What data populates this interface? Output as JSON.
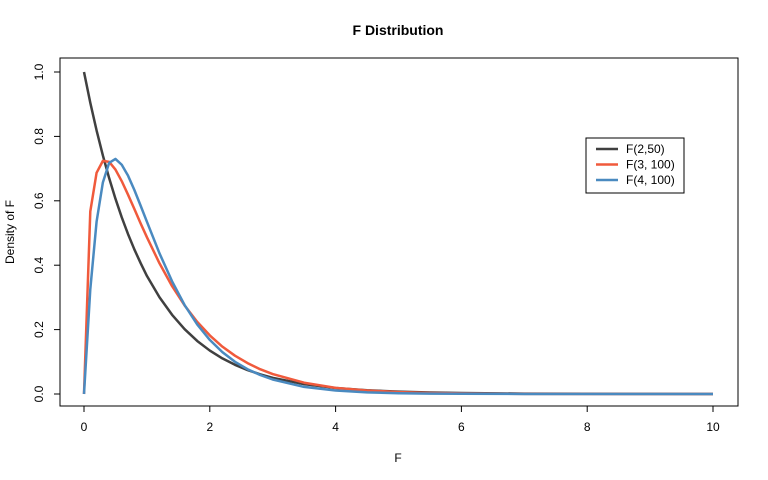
{
  "chart_data": {
    "type": "line",
    "title": "F Distribution",
    "xlabel": "F",
    "ylabel": "Density of F",
    "xlim": [
      0,
      10
    ],
    "ylim": [
      0,
      1.0
    ],
    "x_ticks": [
      0,
      2,
      4,
      6,
      8,
      10
    ],
    "x_tick_labels": [
      "0",
      "2",
      "4",
      "6",
      "8",
      "10"
    ],
    "y_ticks": [
      0.0,
      0.2,
      0.4,
      0.6,
      0.8,
      1.0
    ],
    "y_tick_labels": [
      "0.0",
      "0.2",
      "0.4",
      "0.6",
      "0.8",
      "1.0"
    ],
    "grid": false,
    "legend_position": "right",
    "series": [
      {
        "name": "F(2,50)",
        "color": "#404040",
        "points": [
          [
            0,
            1.0
          ],
          [
            0.1,
            0.9047
          ],
          [
            0.2,
            0.8186
          ],
          [
            0.3,
            0.7408
          ],
          [
            0.4,
            0.6703
          ],
          [
            0.5,
            0.6065
          ],
          [
            0.6,
            0.5488
          ],
          [
            0.7,
            0.4966
          ],
          [
            0.8,
            0.4493
          ],
          [
            0.9,
            0.4066
          ],
          [
            1.0,
            0.3668
          ],
          [
            1.2,
            0.3005
          ],
          [
            1.4,
            0.246
          ],
          [
            1.6,
            0.2013
          ],
          [
            1.8,
            0.1647
          ],
          [
            2.0,
            0.1349
          ],
          [
            2.2,
            0.1106
          ],
          [
            2.4,
            0.0907
          ],
          [
            2.6,
            0.0744
          ],
          [
            2.8,
            0.0611
          ],
          [
            3.0,
            0.0503
          ],
          [
            3.5,
            0.0306
          ],
          [
            4.0,
            0.0188
          ],
          [
            4.5,
            0.0117
          ],
          [
            5.0,
            0.0074
          ],
          [
            5.5,
            0.0047
          ],
          [
            6.0,
            0.003
          ],
          [
            7.0,
            0.0013
          ],
          [
            8.0,
            0.0006
          ],
          [
            9.0,
            0.0003
          ],
          [
            10.0,
            0.0001
          ]
        ]
      },
      {
        "name": "F(3, 100)",
        "color": "#f05a3c",
        "points": [
          [
            0,
            0.0
          ],
          [
            0.1,
            0.567
          ],
          [
            0.2,
            0.687
          ],
          [
            0.3,
            0.724
          ],
          [
            0.4,
            0.721
          ],
          [
            0.5,
            0.697
          ],
          [
            0.6,
            0.661
          ],
          [
            0.7,
            0.619
          ],
          [
            0.8,
            0.575
          ],
          [
            0.9,
            0.53
          ],
          [
            1.0,
            0.487
          ],
          [
            1.2,
            0.406
          ],
          [
            1.4,
            0.335
          ],
          [
            1.6,
            0.275
          ],
          [
            1.8,
            0.224
          ],
          [
            2.0,
            0.182
          ],
          [
            2.2,
            0.147
          ],
          [
            2.4,
            0.119
          ],
          [
            2.6,
            0.096
          ],
          [
            2.8,
            0.077
          ],
          [
            3.0,
            0.062
          ],
          [
            3.5,
            0.035
          ],
          [
            4.0,
            0.019
          ],
          [
            4.5,
            0.011
          ],
          [
            5.0,
            0.006
          ],
          [
            5.5,
            0.003
          ],
          [
            6.0,
            0.002
          ],
          [
            7.0,
            0.0005
          ],
          [
            8.0,
            0.0001
          ],
          [
            9.0,
            0.0
          ],
          [
            10.0,
            0.0
          ]
        ]
      },
      {
        "name": "F(4, 100)",
        "color": "#4a8ac0",
        "points": [
          [
            0,
            0.0
          ],
          [
            0.1,
            0.325
          ],
          [
            0.2,
            0.535
          ],
          [
            0.3,
            0.657
          ],
          [
            0.4,
            0.718
          ],
          [
            0.5,
            0.73
          ],
          [
            0.6,
            0.712
          ],
          [
            0.7,
            0.678
          ],
          [
            0.8,
            0.634
          ],
          [
            0.9,
            0.585
          ],
          [
            1.0,
            0.535
          ],
          [
            1.2,
            0.437
          ],
          [
            1.4,
            0.35
          ],
          [
            1.6,
            0.276
          ],
          [
            1.8,
            0.216
          ],
          [
            2.0,
            0.168
          ],
          [
            2.2,
            0.13
          ],
          [
            2.4,
            0.1
          ],
          [
            2.6,
            0.077
          ],
          [
            2.8,
            0.059
          ],
          [
            3.0,
            0.045
          ],
          [
            3.5,
            0.022
          ],
          [
            4.0,
            0.011
          ],
          [
            4.5,
            0.005
          ],
          [
            5.0,
            0.0025
          ],
          [
            5.5,
            0.0012
          ],
          [
            6.0,
            0.0006
          ],
          [
            7.0,
            0.0001
          ],
          [
            8.0,
            0.0
          ],
          [
            9.0,
            0.0
          ],
          [
            10.0,
            0.0
          ]
        ]
      }
    ]
  }
}
